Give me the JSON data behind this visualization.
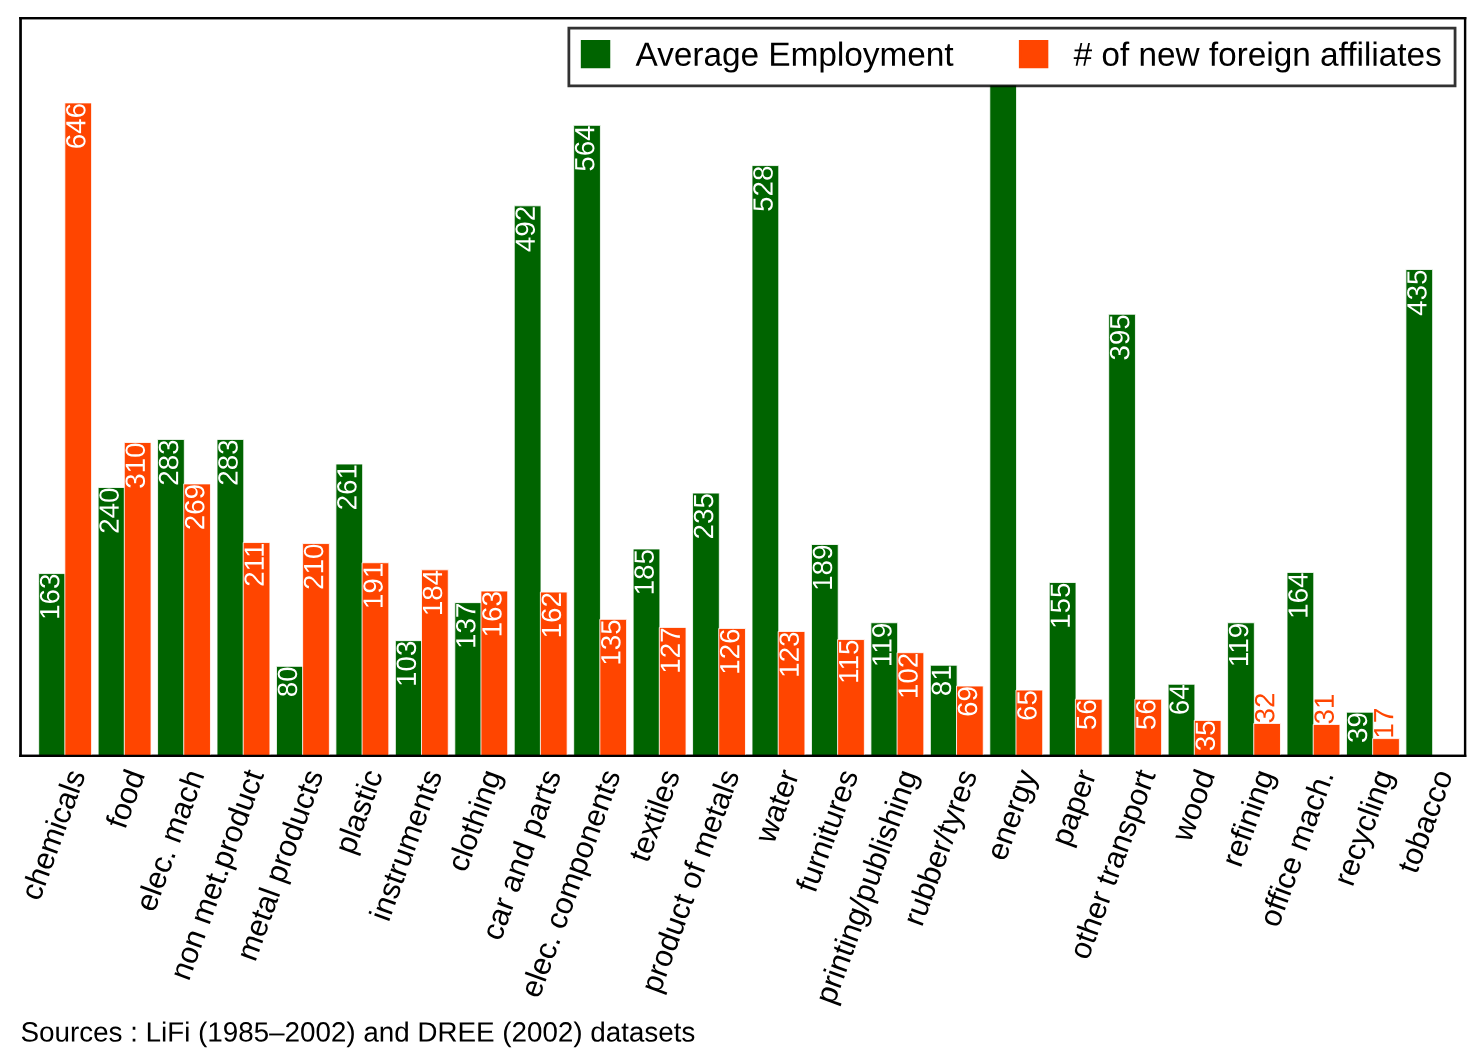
{
  "chart_data": {
    "type": "bar",
    "categories": [
      "chemicals",
      "food",
      "elec. mach",
      "non met.product",
      "metal products",
      "plastic",
      "instruments",
      "clothing",
      "car and parts",
      "elec. components",
      "textiles",
      "product of metals",
      "water",
      "furnitures",
      "printing/publishing",
      "rubber/tyres",
      "energy",
      "paper",
      "other transport",
      "wood",
      "refining",
      "office mach.",
      "recycling",
      "tobacco"
    ],
    "series": [
      {
        "name": "Average Employment",
        "color": "#006400",
        "values": [
          163,
          240,
          283,
          283,
          80,
          261,
          103,
          137,
          492,
          564,
          185,
          235,
          528,
          189,
          119,
          81,
          600,
          155,
          395,
          64,
          119,
          164,
          39,
          435
        ],
        "value_labels": [
          "163",
          "240",
          "283",
          "283",
          "80",
          "261",
          "103",
          "137",
          "492",
          "564",
          "185",
          "235",
          "528",
          "189",
          "119",
          "81",
          null,
          "155",
          "395",
          "64",
          "119",
          "164",
          "39",
          "435"
        ]
      },
      {
        "name": "# of new foreign affiliates",
        "color": "#ff4500",
        "axis": "y2",
        "values": [
          646,
          310,
          269,
          211,
          210,
          191,
          184,
          163,
          162,
          135,
          127,
          126,
          123,
          115,
          102,
          69,
          65,
          56,
          56,
          35,
          32,
          31,
          17,
          null
        ],
        "value_labels": [
          "646",
          "310",
          "269",
          "211",
          "210",
          "191",
          "184",
          "163",
          "162",
          "135",
          "127",
          "126",
          "123",
          "115",
          "102",
          "69",
          "65",
          "56",
          "56",
          "35",
          "32",
          "31",
          "17",
          null
        ]
      }
    ],
    "ylim": [
      0,
      660
    ],
    "y2lim": [
      0,
      730
    ],
    "tick_labels": "x",
    "legend": "top right",
    "grid": false,
    "annotations": [
      "Sources : LiFi (1985–2002) and DREE (2002) datasets"
    ]
  }
}
